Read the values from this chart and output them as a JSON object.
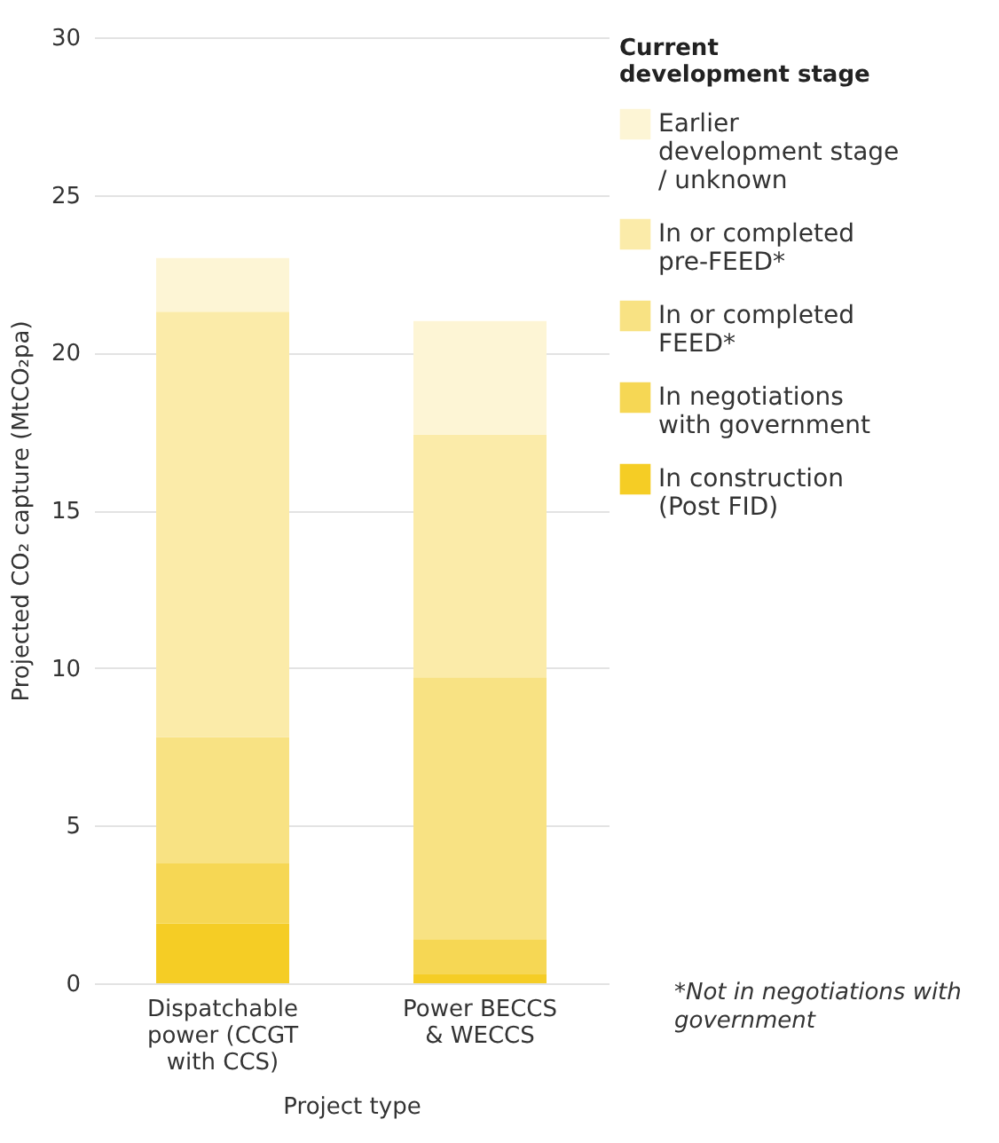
{
  "chart_data": {
    "type": "bar",
    "stacked": true,
    "xlabel": "Project type",
    "ylabel": "Projected CO₂ capture (MtCO₂pa)",
    "legend_title": "Current development stage",
    "categories": [
      "Dispatchable power (CCGT with CCS)",
      "Power BECCS & WECCS"
    ],
    "series": [
      {
        "name": "In construction (Post FID)",
        "color": "#f5cd25",
        "values": [
          1.9,
          0.3
        ]
      },
      {
        "name": "In negotiations with government",
        "color": "#f6d754",
        "values": [
          1.9,
          1.1
        ]
      },
      {
        "name": "In or completed FEED*",
        "color": "#f8e283",
        "values": [
          4.0,
          8.3
        ]
      },
      {
        "name": "In or completed pre-FEED*",
        "color": "#fbeba9",
        "values": [
          13.5,
          7.7
        ]
      },
      {
        "name": "Earlier development stage / unknown",
        "color": "#fdf5d5",
        "values": [
          1.7,
          3.6
        ]
      }
    ],
    "ylim": [
      0,
      30
    ],
    "yticks": [
      0,
      5,
      10,
      15,
      20,
      25,
      30
    ],
    "grid": "y",
    "legend": "right",
    "annotations": [
      "*Not in negotiations with government"
    ]
  }
}
